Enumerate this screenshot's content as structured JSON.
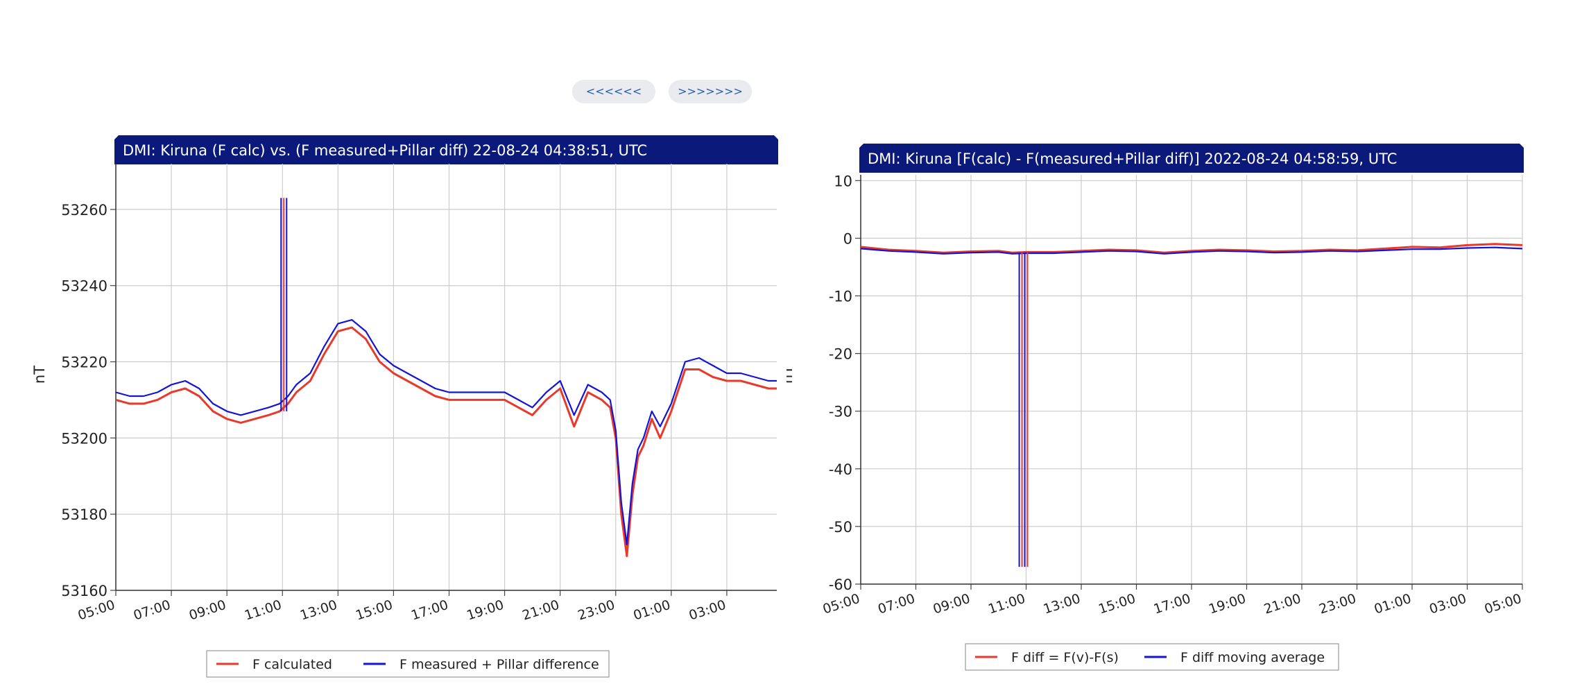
{
  "nav": {
    "prev_label": "<<<<<<",
    "next_label": ">>>>>>>"
  },
  "colors": {
    "title_bg": "#0b1a7a",
    "series_red": "#e8392a",
    "series_blue": "#1414d8",
    "grid": "#cccccc"
  },
  "chart_data": [
    {
      "type": "line",
      "title": "DMI: Kiruna (F calc) vs. (F measured+Pillar diff) 22-08-24 04:38:51, UTC",
      "ylabel": "nT",
      "xlabel": "",
      "ylim": [
        53160,
        53272
      ],
      "yticks": [
        "53160",
        "53180",
        "53200",
        "53220",
        "53240",
        "53260"
      ],
      "xticks": [
        "05:00",
        "07:00",
        "09:00",
        "11:00",
        "13:00",
        "15:00",
        "17:00",
        "19:00",
        "21:00",
        "23:00",
        "01:00",
        "03:00"
      ],
      "xlim_hours": [
        0,
        23.8
      ],
      "grid": true,
      "legend": "bottom-center",
      "series": [
        {
          "name": "F calculated",
          "color": "#e8392a",
          "x": [
            0,
            0.5,
            1,
            1.5,
            2,
            2.5,
            3,
            3.5,
            4,
            4.5,
            5,
            5.5,
            5.9,
            6.2,
            6.5,
            7,
            7.5,
            8,
            8.5,
            9,
            9.5,
            10,
            10.5,
            11,
            11.5,
            12,
            12.5,
            13,
            13.5,
            14,
            14.5,
            15,
            15.5,
            16,
            16.5,
            17,
            17.5,
            17.8,
            18,
            18.2,
            18.4,
            18.6,
            18.8,
            19,
            19.3,
            19.6,
            20,
            20.5,
            21,
            21.5,
            22,
            22.5,
            23,
            23.5,
            23.8
          ],
          "y": [
            53210,
            53209,
            53209,
            53210,
            53212,
            53213,
            53211,
            53207,
            53205,
            53204,
            53205,
            53206,
            53207,
            53209,
            53212,
            53215,
            53222,
            53228,
            53229,
            53226,
            53220,
            53217,
            53215,
            53213,
            53211,
            53210,
            53210,
            53210,
            53210,
            53210,
            53208,
            53206,
            53210,
            53213,
            53203,
            53212,
            53210,
            53208,
            53200,
            53180,
            53169,
            53185,
            53195,
            53198,
            53205,
            53200,
            53207,
            53218,
            53218,
            53216,
            53215,
            53215,
            53214,
            53213,
            53213
          ]
        },
        {
          "name": "F measured + Pillar difference",
          "color": "#1414d8",
          "x": [
            0,
            0.5,
            1,
            1.5,
            2,
            2.5,
            3,
            3.5,
            4,
            4.5,
            5,
            5.5,
            5.9,
            6.2,
            6.5,
            7,
            7.5,
            8,
            8.5,
            9,
            9.5,
            10,
            10.5,
            11,
            11.5,
            12,
            12.5,
            13,
            13.5,
            14,
            14.5,
            15,
            15.5,
            16,
            16.5,
            17,
            17.5,
            17.8,
            18,
            18.2,
            18.4,
            18.6,
            18.8,
            19,
            19.3,
            19.6,
            20,
            20.5,
            21,
            21.5,
            22,
            22.5,
            23,
            23.5,
            23.8
          ],
          "y": [
            53212,
            53211,
            53211,
            53212,
            53214,
            53215,
            53213,
            53209,
            53207,
            53206,
            53207,
            53208,
            53209,
            53211,
            53214,
            53217,
            53224,
            53230,
            53231,
            53228,
            53222,
            53219,
            53217,
            53215,
            53213,
            53212,
            53212,
            53212,
            53212,
            53212,
            53210,
            53208,
            53212,
            53215,
            53206,
            53214,
            53212,
            53210,
            53202,
            53183,
            53172,
            53188,
            53197,
            53200,
            53207,
            53203,
            53209,
            53220,
            53221,
            53219,
            53217,
            53217,
            53216,
            53215,
            53215
          ]
        }
      ],
      "spikes": {
        "x": [
          5.95,
          6.05,
          6.15
        ],
        "y": 53263,
        "base": 53207
      }
    },
    {
      "type": "line",
      "title": "DMI: Kiruna [F(calc) - F(measured+Pillar diff)] 2022-08-24 04:58:59, UTC",
      "ylabel": "nT",
      "xlabel": "",
      "ylim": [
        -60,
        11
      ],
      "yticks": [
        "-60",
        "-50",
        "-40",
        "-30",
        "-20",
        "-10",
        "0",
        "10"
      ],
      "xticks": [
        "05:00",
        "07:00",
        "09:00",
        "11:00",
        "13:00",
        "15:00",
        "17:00",
        "19:00",
        "21:00",
        "23:00",
        "01:00",
        "03:00",
        "05:00"
      ],
      "xlim_hours": [
        0,
        24
      ],
      "grid": true,
      "legend": "bottom-center",
      "series": [
        {
          "name": "F diff = F(v)-F(s)",
          "color": "#e8392a",
          "x": [
            0,
            1,
            2,
            3,
            4,
            5,
            5.5,
            6,
            7,
            8,
            9,
            10,
            11,
            12,
            13,
            14,
            15,
            16,
            17,
            18,
            19,
            20,
            21,
            22,
            23,
            24
          ],
          "y": [
            -1.5,
            -2,
            -2.2,
            -2.5,
            -2.3,
            -2.2,
            -2.5,
            -2.4,
            -2.4,
            -2.2,
            -2,
            -2.1,
            -2.5,
            -2.2,
            -2,
            -2.1,
            -2.3,
            -2.2,
            -2,
            -2.1,
            -1.8,
            -1.5,
            -1.6,
            -1.2,
            -1,
            -1.2
          ]
        },
        {
          "name": "F diff moving average",
          "color": "#1414d8",
          "x": [
            0,
            1,
            2,
            3,
            4,
            5,
            5.5,
            6,
            7,
            8,
            9,
            10,
            11,
            12,
            13,
            14,
            15,
            16,
            17,
            18,
            19,
            20,
            21,
            22,
            23,
            24
          ],
          "y": [
            -1.8,
            -2.2,
            -2.4,
            -2.7,
            -2.5,
            -2.4,
            -2.7,
            -2.6,
            -2.6,
            -2.4,
            -2.2,
            -2.3,
            -2.7,
            -2.4,
            -2.2,
            -2.3,
            -2.5,
            -2.4,
            -2.2,
            -2.3,
            -2.1,
            -1.9,
            -1.9,
            -1.7,
            -1.6,
            -1.8
          ]
        }
      ],
      "spikes": {
        "x": [
          5.75,
          5.85,
          5.95,
          6.05
        ],
        "y": -57,
        "base": -2.5
      }
    }
  ]
}
